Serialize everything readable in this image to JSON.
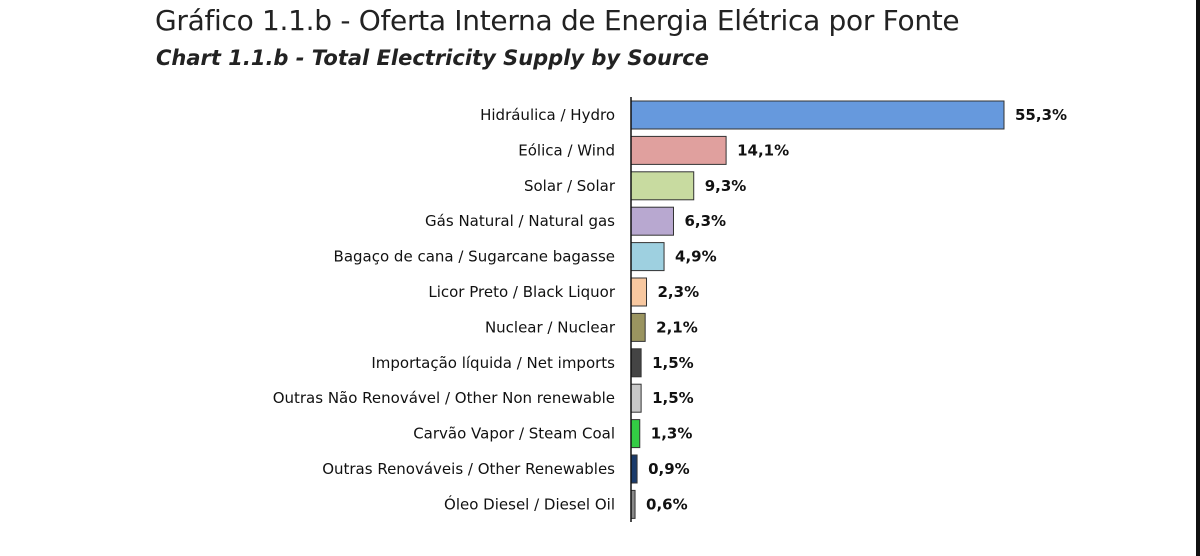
{
  "title": "Gráfico 1.1.b - Oferta Interna de Energia Elétrica por Fonte",
  "subtitle": "Chart 1.1.b - Total Electricity Supply by Source",
  "chart_data": {
    "type": "bar",
    "orientation": "horizontal",
    "categories": [
      "Hidráulica / Hydro",
      "Eólica / Wind",
      "Solar / Solar",
      "Gás Natural / Natural gas",
      "Bagaço de cana / Sugarcane bagasse",
      "Licor Preto / Black Liquor",
      "Nuclear / Nuclear",
      "Importação líquida / Net imports",
      "Outras Não Renovável / Other Non renewable",
      "Carvão Vapor / Steam Coal",
      "Outras Renováveis / Other Renewables",
      "Óleo Diesel / Diesel Oil"
    ],
    "values": [
      55.3,
      14.1,
      9.3,
      6.3,
      4.9,
      2.3,
      2.1,
      1.5,
      1.5,
      1.3,
      0.9,
      0.6
    ],
    "value_labels": [
      "55,3%",
      "14,1%",
      "9,3%",
      "6,3%",
      "4,9%",
      "2,3%",
      "2,1%",
      "1,5%",
      "1,5%",
      "1,3%",
      "0,9%",
      "0,6%"
    ],
    "colors": [
      "#6699dd",
      "#e0a09e",
      "#c8dba0",
      "#b8a8d0",
      "#9ed0e0",
      "#f8c8a0",
      "#9a9460",
      "#444444",
      "#c8c8c8",
      "#33cc44",
      "#1a3a6a",
      "#888888"
    ],
    "unit": "%",
    "grid": false,
    "legend": "none"
  }
}
